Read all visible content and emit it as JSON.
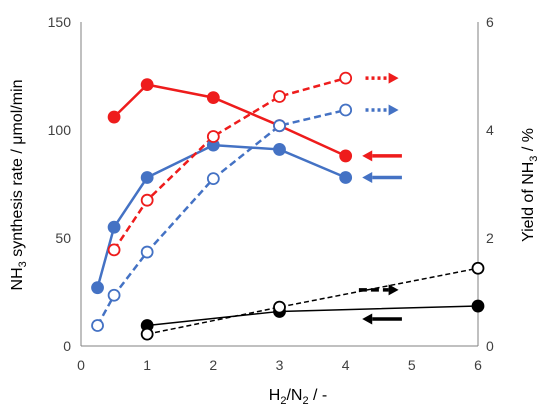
{
  "chart_data": {
    "type": "scatter",
    "x_label": {
      "prefix": "H",
      "sub1": "2",
      "mid": "/N",
      "sub2": "2",
      "suffix": " / -"
    },
    "y_left_label": {
      "prefix": "NH",
      "sub": "3",
      "suffix": " synthesis rate / μmol/min"
    },
    "y_right_label": {
      "prefix": "Yield of NH",
      "sub": "3",
      "suffix": " / %"
    },
    "x_ticks": [
      "0",
      "1",
      "2",
      "3",
      "4",
      "5",
      "6"
    ],
    "y_left_ticks": [
      "0",
      "50",
      "100",
      "150"
    ],
    "y_right_ticks": [
      "0",
      "2",
      "4",
      "6"
    ],
    "xlim": [
      0,
      6
    ],
    "y_left_lim": [
      0,
      150
    ],
    "y_right_lim": [
      0,
      6
    ],
    "grid": false,
    "colors": {
      "red": "#ee1c1c",
      "blue": "#4472c4",
      "black": "#000000"
    },
    "series": [
      {
        "axis": "left",
        "color": "red",
        "marker": "filled",
        "line": "solid",
        "x": [
          0.5,
          1,
          2,
          3,
          4
        ],
        "y": [
          106,
          121,
          115,
          102,
          88
        ]
      },
      {
        "axis": "left",
        "color": "blue",
        "marker": "filled",
        "line": "solid",
        "x": [
          0.25,
          0.5,
          1,
          2,
          3,
          4
        ],
        "y": [
          27,
          55,
          78,
          93,
          91,
          78
        ]
      },
      {
        "axis": "left",
        "color": "black",
        "marker": "filled",
        "line": "solid",
        "x": [
          1,
          3,
          6
        ],
        "y": [
          9.5,
          16,
          18.5
        ]
      },
      {
        "axis": "right",
        "color": "red",
        "marker": "open",
        "line": "dashed",
        "x": [
          0.5,
          1,
          2,
          3,
          4
        ],
        "y": [
          1.78,
          2.7,
          3.88,
          4.62,
          4.96
        ]
      },
      {
        "axis": "right",
        "color": "blue",
        "marker": "open",
        "line": "dashed",
        "x": [
          0.25,
          0.5,
          1,
          2,
          3,
          4
        ],
        "y": [
          0.38,
          0.94,
          1.74,
          3.1,
          4.08,
          4.37
        ]
      },
      {
        "axis": "right",
        "color": "black",
        "marker": "open",
        "line": "dashed",
        "x": [
          1,
          3,
          6
        ],
        "y": [
          0.22,
          0.72,
          1.44
        ]
      }
    ],
    "arrows": [
      {
        "color": "red",
        "direction": "right",
        "line": "dotted",
        "x": [
          4.3,
          4.8
        ],
        "y_axis": "right",
        "y": 4.96
      },
      {
        "color": "blue",
        "direction": "right",
        "line": "dotted",
        "x": [
          4.3,
          4.8
        ],
        "y_axis": "right",
        "y": 4.37
      },
      {
        "color": "red",
        "direction": "left",
        "line": "solid",
        "x": [
          4.25,
          4.85
        ],
        "y_axis": "left",
        "y": 88
      },
      {
        "color": "blue",
        "direction": "left",
        "line": "solid",
        "x": [
          4.25,
          4.85
        ],
        "y_axis": "left",
        "y": 78
      },
      {
        "color": "black",
        "direction": "right",
        "line": "dashed",
        "x": [
          4.2,
          4.8
        ],
        "y_axis": "left",
        "y": 26
      },
      {
        "color": "black",
        "direction": "left",
        "line": "solid",
        "x": [
          4.25,
          4.85
        ],
        "y_axis": "left",
        "y": 12.5
      }
    ]
  }
}
